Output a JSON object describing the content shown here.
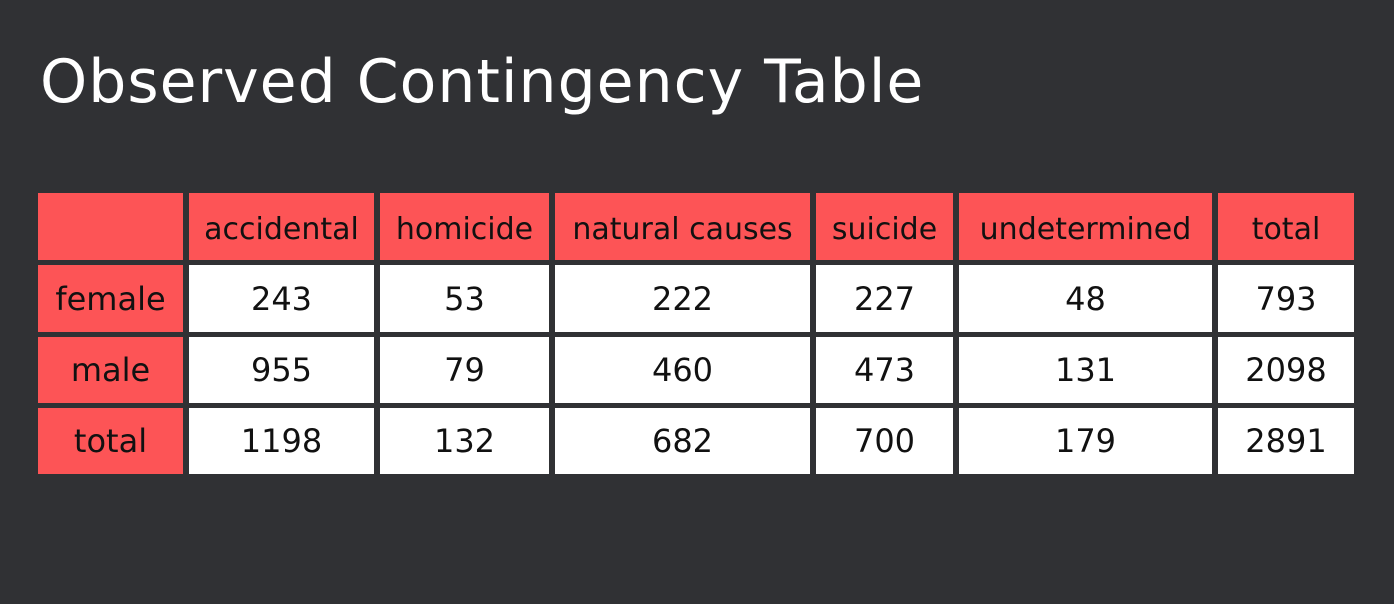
{
  "title": "Observed Contingency Table",
  "table": {
    "corner": "",
    "columns": [
      "accidental",
      "homicide",
      "natural causes",
      "suicide",
      "undetermined",
      "total"
    ],
    "rows": [
      {
        "label": "female",
        "values": [
          "243",
          "53",
          "222",
          "227",
          "48",
          "793"
        ]
      },
      {
        "label": "male",
        "values": [
          "955",
          "79",
          "460",
          "473",
          "131",
          "2098"
        ]
      },
      {
        "label": "total",
        "values": [
          "1198",
          "132",
          "682",
          "700",
          "179",
          "2891"
        ]
      }
    ]
  },
  "colors": {
    "background": "#303134",
    "header": "#fd5456",
    "cell": "#ffffff",
    "title": "#ffffff",
    "text": "#111111"
  }
}
